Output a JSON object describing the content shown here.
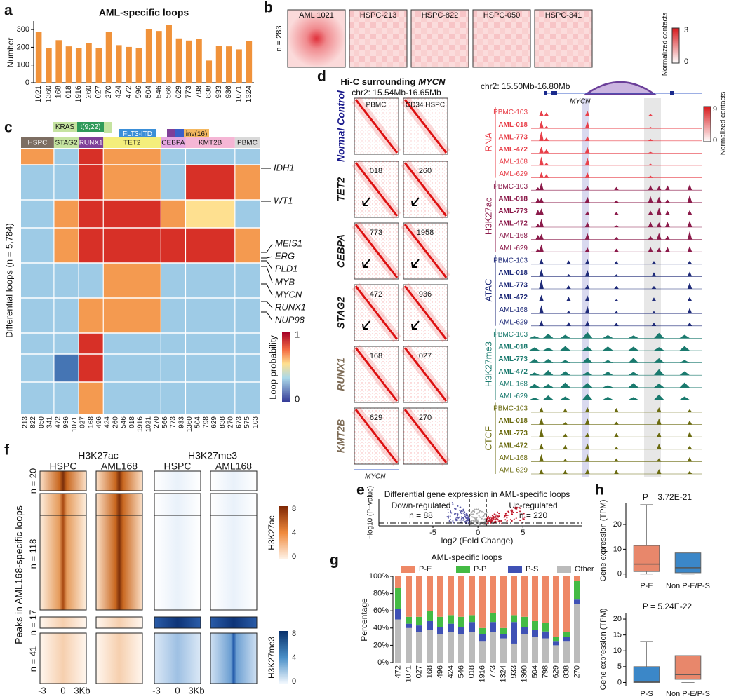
{
  "panel_letters": [
    "a",
    "b",
    "c",
    "d",
    "e",
    "f",
    "g",
    "h"
  ],
  "chart_data": [
    {
      "type": "bar",
      "title": "AML-specific loops",
      "ylabel": "Number",
      "categories": [
        "1021",
        "1360",
        "168",
        "018",
        "1916",
        "260",
        "027",
        "270",
        "424",
        "472",
        "596",
        "504",
        "546",
        "566",
        "629",
        "773",
        "798",
        "838",
        "933",
        "936",
        "1071",
        "1324"
      ],
      "values": [
        285,
        197,
        240,
        205,
        195,
        222,
        197,
        285,
        212,
        202,
        197,
        302,
        292,
        325,
        250,
        238,
        248,
        125,
        208,
        205,
        188,
        235
      ],
      "color": "#f0923a",
      "ylim": [
        0,
        340
      ],
      "yticks": [
        0,
        100,
        200,
        300
      ]
    },
    {
      "type": "stacked_bar",
      "title": "AML-specific loops",
      "ylabel": "Percentage",
      "categories": [
        "472",
        "1071",
        "027",
        "168",
        "496",
        "424",
        "546",
        "018",
        "1916",
        "773",
        "1324",
        "933",
        "1360",
        "504",
        "798",
        "629",
        "838",
        "270"
      ],
      "series": [
        {
          "name": "P-E",
          "color": "#ee8866",
          "values": [
            13,
            47,
            47,
            40,
            47,
            45,
            47,
            45,
            60,
            43,
            60,
            45,
            47,
            52,
            54,
            70,
            65,
            5
          ]
        },
        {
          "name": "P-P",
          "color": "#44bb44",
          "values": [
            25,
            8,
            10,
            12,
            12,
            10,
            12,
            8,
            7,
            10,
            7,
            8,
            12,
            10,
            10,
            5,
            5,
            22
          ]
        },
        {
          "name": "P-S",
          "color": "#3f51b5",
          "values": [
            12,
            5,
            8,
            10,
            8,
            10,
            8,
            12,
            8,
            12,
            5,
            25,
            8,
            8,
            8,
            5,
            5,
            5
          ]
        },
        {
          "name": "Other",
          "color": "#bbbbbb",
          "values": [
            50,
            40,
            35,
            38,
            33,
            35,
            33,
            35,
            25,
            35,
            28,
            22,
            33,
            30,
            28,
            20,
            25,
            68
          ]
        }
      ],
      "ylim": [
        0,
        100
      ],
      "yticks": [
        {
          "value": 0,
          "label": "0%"
        },
        {
          "value": 20,
          "label": "20%"
        },
        {
          "value": 40,
          "label": "40%"
        },
        {
          "value": 60,
          "label": "60%"
        },
        {
          "value": 80,
          "label": "80%"
        },
        {
          "value": 100,
          "label": "100%"
        }
      ]
    },
    {
      "type": "box",
      "annotation": "P = 3.72E-21",
      "ylabel": "Gene expression (TPM)",
      "categories": [
        "P-E",
        "Non P-E/P-S"
      ],
      "colors": [
        "#e8876b",
        "#3b87c8"
      ],
      "boxes": [
        {
          "min": 0,
          "q1": 1,
          "median": 4,
          "q3": 11.5,
          "max": 28
        },
        {
          "min": 0,
          "q1": 0.5,
          "median": 2.5,
          "q3": 8.5,
          "max": 21
        }
      ],
      "ylim": [
        -1.5,
        28.5
      ],
      "yticks": [
        0,
        10,
        20
      ]
    },
    {
      "type": "box",
      "annotation": "P = 5.24E-22",
      "ylabel": "Gene expression (TPM)",
      "categories": [
        "P-S",
        "Non P-E/P-S"
      ],
      "colors": [
        "#3b87c8",
        "#e8876b"
      ],
      "boxes": [
        {
          "min": 0,
          "q1": 0,
          "median": 0.3,
          "q3": 5,
          "max": 13
        },
        {
          "min": 0,
          "q1": 1,
          "median": 2.5,
          "q3": 8.5,
          "max": 21
        }
      ],
      "ylim": [
        -1,
        22
      ],
      "yticks": [
        0,
        5,
        10,
        15,
        20
      ]
    }
  ],
  "panels": {
    "b": {
      "labels": [
        "AML 1021",
        "HSPC-213",
        "HSPC-822",
        "HSPC-050",
        "HSPC-341"
      ],
      "n_label": "n = 283",
      "colorbar": {
        "title": "Normalized contacts",
        "ticks": [
          3,
          0
        ]
      }
    },
    "c": {
      "mutations": [
        {
          "name": "KRAS",
          "color": "#c5e3a0"
        },
        {
          "name": "t(9;22)",
          "color": "#2f9a5a"
        },
        {
          "name": "FLT3-ITD",
          "color": "#3b8fd8"
        },
        {
          "name": "inv(16)",
          "color": "#f4b860"
        }
      ],
      "groups": [
        {
          "name": "HSPC",
          "color": "#7d6e62",
          "samples": [
            "213",
            "822",
            "050",
            "341"
          ]
        },
        {
          "name": "STAG2",
          "color": "#c5e3a0",
          "samples": [
            "472",
            "936",
            "1071"
          ]
        },
        {
          "name": "RUNX1",
          "color": "#7f3f98",
          "samples": [
            "027",
            "168",
            "496"
          ]
        },
        {
          "name": "TET2",
          "color": "#f4ee7c",
          "samples": [
            "424",
            "260",
            "546",
            "018",
            "1916",
            "1021",
            "270"
          ]
        },
        {
          "name": "CEBPA",
          "color": "#e6a8e0",
          "samples": [
            "566",
            "773",
            "933"
          ]
        },
        {
          "name": "KMT2B",
          "color": "#f5b6d5",
          "samples": [
            "1360",
            "504",
            "798",
            "629",
            "838",
            "270"
          ]
        },
        {
          "name": "PBMC",
          "color": "#d9d9d9",
          "samples": [
            "673",
            "575",
            "103"
          ]
        }
      ],
      "genes": [
        "IDH1",
        "WT1",
        "MEIS1",
        "ERG",
        "PLD1",
        "MYB",
        "MYCN",
        "RUNX1",
        "NUP98"
      ],
      "ylabel": "Differential loops (n = 5,784)",
      "colorbar": {
        "title": "Loop probability",
        "ticks": [
          1,
          0
        ]
      }
    },
    "d": {
      "title": "Hi-C surrounding",
      "title_gene": "MYCN",
      "hic_region": "chr2: 15.54Mb-16.65Mb",
      "hic_columns": [
        "PBMC",
        "CD34 HSPC"
      ],
      "hic_rows": [
        {
          "label": "Normal Control",
          "color": "#1a1a8c",
          "samples": []
        },
        {
          "label": "TET2",
          "color": "#111111",
          "samples": [
            "018",
            "260"
          ]
        },
        {
          "label": "CEBPA",
          "color": "#111111",
          "samples": [
            "773",
            "1958"
          ]
        },
        {
          "label": "STAG2",
          "color": "#111111",
          "samples": [
            "472",
            "936"
          ]
        },
        {
          "label": "RUNX1",
          "color": "#7d6b55",
          "samples": [
            "168",
            "027"
          ]
        },
        {
          "label": "KMT2B",
          "color": "#7d6b55",
          "samples": [
            "629",
            "270"
          ]
        }
      ],
      "hic_gene": "MYCN",
      "track_region": "chr2: 15.50Mb-16.80Mb",
      "track_gene": "MYCN",
      "colorbar": {
        "title": "Normalized contacts",
        "ticks": [
          9,
          0
        ]
      },
      "assays": [
        {
          "name": "RNA",
          "color": "#e8404a"
        },
        {
          "name": "H3K27ac",
          "color": "#8b1a4a"
        },
        {
          "name": "ATAC",
          "color": "#1e2a78"
        },
        {
          "name": "H3K27me3",
          "color": "#1a7a6e"
        },
        {
          "name": "CTCF",
          "color": "#6b6b10"
        }
      ],
      "tracks": [
        {
          "name": "PBMC-103",
          "bold": false
        },
        {
          "name": "AML-018",
          "bold": true
        },
        {
          "name": "AML-773",
          "bold": true
        },
        {
          "name": "AML-472",
          "bold": true
        },
        {
          "name": "AML-168",
          "bold": false
        },
        {
          "name": "AML-629",
          "bold": false
        }
      ]
    },
    "e": {
      "title": "Differential gene expression in AML-specific loops",
      "down": "Down-regulated",
      "down_n": "n = 88",
      "up": "Up-regulated",
      "up_n": "n = 220",
      "xlabel": "log2 (Fold Change)",
      "ylabel": "−log10 (P−value)",
      "xlim": [
        -11,
        11.6
      ],
      "xticks": [
        -5,
        0,
        5
      ]
    },
    "f": {
      "marks": [
        "H3K27ac",
        "H3K27me3"
      ],
      "samples": [
        "HSPC",
        "AML168",
        "HSPC",
        "AML168"
      ],
      "groups": [
        "n = 20",
        "n = 118",
        "n = 17",
        "n = 41"
      ],
      "ylabel": "Peaks in AML168-specific loops",
      "xticks": [
        "-3",
        "0",
        "3Kb"
      ],
      "colorbars": [
        {
          "title": "H3K27ac",
          "ticks": [
            8,
            4,
            0
          ]
        },
        {
          "title": "H3K27me3",
          "ticks": [
            8,
            4,
            0
          ]
        }
      ]
    }
  }
}
